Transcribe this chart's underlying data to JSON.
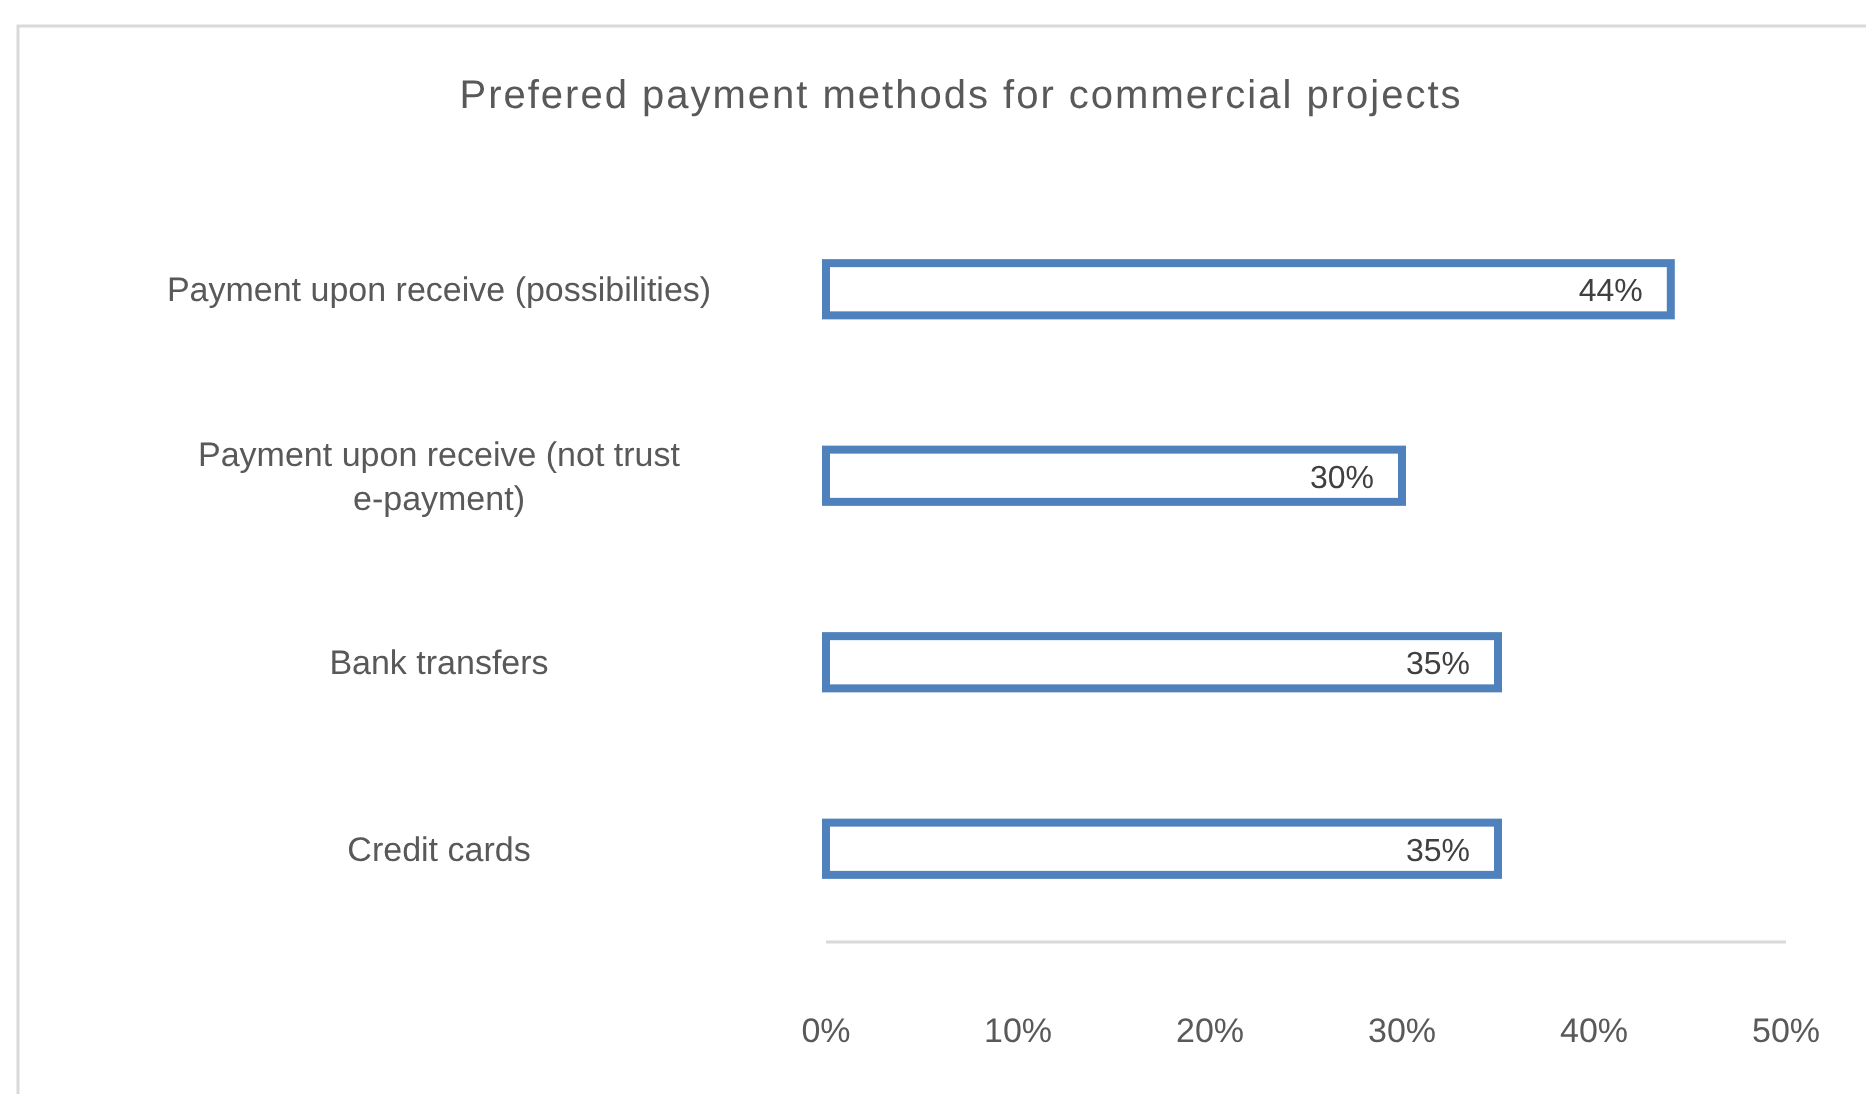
{
  "chart_data": {
    "type": "bar",
    "orientation": "horizontal",
    "title": "Prefered payment methods for commercial projects",
    "categories": [
      "Payment upon receive (possibilities)",
      "Payment upon receive (not trust e-payment)",
      "Bank transfers",
      "Credit cards"
    ],
    "values": [
      44,
      30,
      35,
      35
    ],
    "color": "#4f81bd",
    "value_labels": [
      "44%",
      "30%",
      "35%",
      "35%"
    ],
    "xlim": [
      0,
      50
    ],
    "xticks": [
      {
        "value": 0,
        "label": "0%"
      },
      {
        "value": 10,
        "label": "10%"
      },
      {
        "value": 20,
        "label": "20%"
      },
      {
        "value": 30,
        "label": "30%"
      },
      {
        "value": 40,
        "label": "40%"
      },
      {
        "value": 50,
        "label": "50%"
      }
    ],
    "grid": false
  }
}
